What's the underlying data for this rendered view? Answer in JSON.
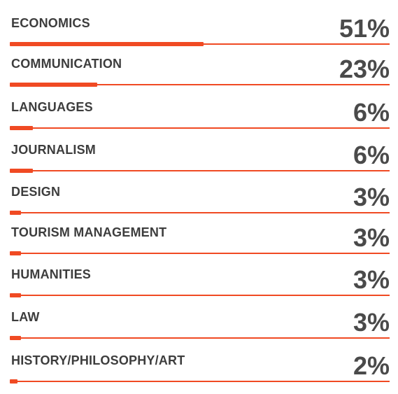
{
  "chart_data": {
    "type": "bar",
    "orientation": "horizontal",
    "categories": [
      "ECONOMICS",
      "COMMUNICATION",
      "LANGUAGES",
      "JOURNALISM",
      "DESIGN",
      "TOURISM MANAGEMENT",
      "HUMANITIES",
      "LAW",
      "HISTORY/PHILOSOPHY/ART"
    ],
    "values": [
      51,
      23,
      6,
      6,
      3,
      3,
      3,
      3,
      2
    ],
    "value_labels": [
      "51%",
      "23%",
      "6%",
      "6%",
      "3%",
      "3%",
      "3%",
      "3%",
      "2%"
    ],
    "xlim": [
      0,
      100
    ],
    "title": "",
    "xlabel": "",
    "ylabel": "",
    "grid": false,
    "legend": "none",
    "colors": {
      "bar": "#f04a23",
      "text": "#3d3d3d"
    }
  }
}
